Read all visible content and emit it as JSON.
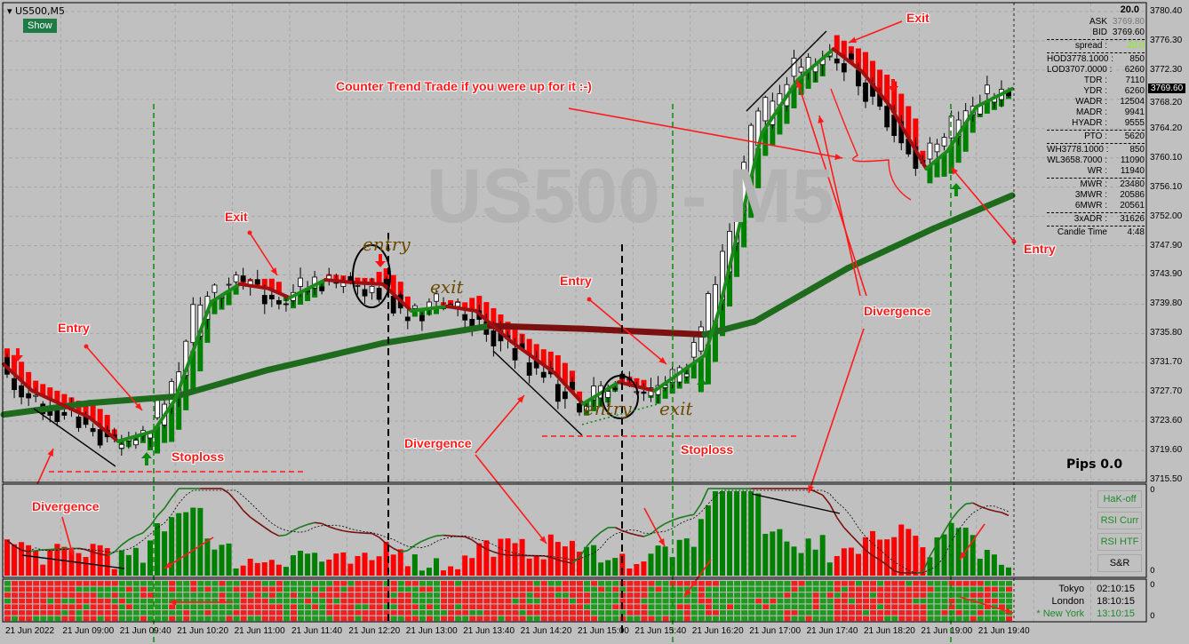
{
  "window": {
    "symbol": "US500,M5",
    "show_button": "Show",
    "watermark": "US500 - M5"
  },
  "info_panel": {
    "header": "20.0",
    "rows": [
      {
        "label": "ASK",
        "value": "3769.80"
      },
      {
        "label": "BID",
        "value": "3769.60"
      },
      {
        "label": "spread :",
        "value": "20.0"
      },
      {
        "label": "HOD3778.1000 :",
        "value": "850"
      },
      {
        "label": "LOD3707.0000 :",
        "value": "6260"
      },
      {
        "label": "TDR :",
        "value": "7110"
      },
      {
        "label": "YDR :",
        "value": "6260"
      },
      {
        "label": "WADR :",
        "value": "12504"
      },
      {
        "label": "MADR :",
        "value": "9941"
      },
      {
        "label": "HYADR :",
        "value": "9555"
      },
      {
        "label": "PTO :",
        "value": "5620"
      },
      {
        "label": "WH3778.1000 :",
        "value": "850"
      },
      {
        "label": "WL3658.7000 :",
        "value": "11090"
      },
      {
        "label": "WR :",
        "value": "11940"
      },
      {
        "label": "MWR :",
        "value": "23480"
      },
      {
        "label": "3MWR :",
        "value": "20586"
      },
      {
        "label": "6MWR :",
        "value": "20561"
      },
      {
        "label": "3xADR :",
        "value": "31626"
      },
      {
        "label": "Candle Time",
        "value": "4:48"
      }
    ],
    "spread_color": "#7cfc00"
  },
  "pips": "Pips 0.0",
  "current_price": "3769.60",
  "indicator_buttons": [
    "HaK-off",
    "RSI Curr",
    "RSI HTF",
    "S&R"
  ],
  "indicator_zero": "0",
  "clocks": [
    {
      "city": "Tokyo",
      "time": "02:10:15",
      "color": "#000000"
    },
    {
      "city": "London",
      "time": "18:10:15",
      "color": "#000000"
    },
    {
      "city": "* New York",
      "time": "13:10:15",
      "color": "#1e8a2a"
    }
  ],
  "price_axis": [
    "3780.40",
    "3776.30",
    "3772.30",
    "3768.20",
    "3764.20",
    "3760.10",
    "3756.10",
    "3752.00",
    "3747.90",
    "3743.90",
    "3739.80",
    "3735.80",
    "3731.70",
    "3727.70",
    "3723.60",
    "3719.60",
    "3715.50"
  ],
  "time_axis": [
    "21 Jun 2022",
    "21 Jun 09:00",
    "21 Jun 09:40",
    "21 Jun 10:20",
    "21 Jun 11:00",
    "21 Jun 11:40",
    "21 Jun 12:20",
    "21 Jun 13:00",
    "21 Jun 13:40",
    "21 Jun 14:20",
    "21 Jun 15:00",
    "21 Jun 15:40",
    "21 Jun 16:20",
    "21 Jun 17:00",
    "21 Jun 17:40",
    "21 Jun 18:20",
    "21 Jun 19:00",
    "21 Jun 19:40"
  ],
  "annotations": {
    "exit_top": "Exit",
    "counter_trend": "Counter Trend Trade if you were up for it :-)",
    "exit_left": "Exit",
    "entry_left": "Entry",
    "entry_mid": "Entry",
    "entry_right": "Entry",
    "divergence_right": "Divergence",
    "divergence_mid": "Divergence",
    "divergence_left": "Divergence",
    "stoploss_left": "Stoploss",
    "stoploss_mid": "Stoploss",
    "hand_entry_1": "entry",
    "hand_exit_1": "exit",
    "hand_entry_2": "entry",
    "hand_exit_2": "exit"
  },
  "colors": {
    "bull": "#008000",
    "bear": "#ff0000",
    "ma_down": "#8b0000",
    "annotation": "#ff1a1a",
    "background": "#c0c0c0"
  },
  "chart_data": {
    "type": "candlestick",
    "timeframe": "M5",
    "ylim": [
      3715.5,
      3780.4
    ],
    "grid": true,
    "fast_ma": [
      {
        "t": "08:20",
        "p": 3731.5
      },
      {
        "t": "08:40",
        "p": 3727.8
      },
      {
        "t": "09:20",
        "p": 3724.1
      },
      {
        "t": "09:40",
        "p": 3720.8
      },
      {
        "t": "10:05",
        "p": 3722.2
      },
      {
        "t": "10:20",
        "p": 3726.6
      },
      {
        "t": "10:45",
        "p": 3740.1
      },
      {
        "t": "11:05",
        "p": 3742.6
      },
      {
        "t": "11:25",
        "p": 3742.0
      },
      {
        "t": "11:40",
        "p": 3740.7
      },
      {
        "t": "12:05",
        "p": 3743.2
      },
      {
        "t": "12:25",
        "p": 3742.8
      },
      {
        "t": "12:45",
        "p": 3742.6
      },
      {
        "t": "13:05",
        "p": 3738.9
      },
      {
        "t": "13:30",
        "p": 3739.5
      },
      {
        "t": "13:50",
        "p": 3738.9
      },
      {
        "t": "14:15",
        "p": 3734.6
      },
      {
        "t": "14:45",
        "p": 3730.3
      },
      {
        "t": "15:05",
        "p": 3726.0
      },
      {
        "t": "15:30",
        "p": 3729.0
      },
      {
        "t": "15:55",
        "p": 3727.8
      },
      {
        "t": "16:30",
        "p": 3732.7
      },
      {
        "t": "16:40",
        "p": 3738.9
      },
      {
        "t": "16:55",
        "p": 3751.2
      },
      {
        "t": "17:10",
        "p": 3763.5
      },
      {
        "t": "17:35",
        "p": 3770.9
      },
      {
        "t": "18:00",
        "p": 3775.2
      },
      {
        "t": "18:20",
        "p": 3772.1
      },
      {
        "t": "18:40",
        "p": 3767.2
      },
      {
        "t": "19:05",
        "p": 3758.6
      },
      {
        "t": "19:20",
        "p": 3761.1
      },
      {
        "t": "19:40",
        "p": 3767.2
      },
      {
        "t": "20:05",
        "p": 3769.7
      }
    ],
    "slow_ma": [
      {
        "t": "08:20",
        "p": 3724.5
      },
      {
        "t": "09:20",
        "p": 3726.1
      },
      {
        "t": "10:20",
        "p": 3727.0
      },
      {
        "t": "11:25",
        "p": 3730.7
      },
      {
        "t": "12:45",
        "p": 3734.4
      },
      {
        "t": "14:00",
        "p": 3736.8
      },
      {
        "t": "15:05",
        "p": 3736.4
      },
      {
        "t": "16:30",
        "p": 3735.6
      },
      {
        "t": "17:05",
        "p": 3737.4
      },
      {
        "t": "18:10",
        "p": 3744.8
      },
      {
        "t": "19:10",
        "p": 3750.3
      },
      {
        "t": "20:05",
        "p": 3754.9
      }
    ]
  }
}
